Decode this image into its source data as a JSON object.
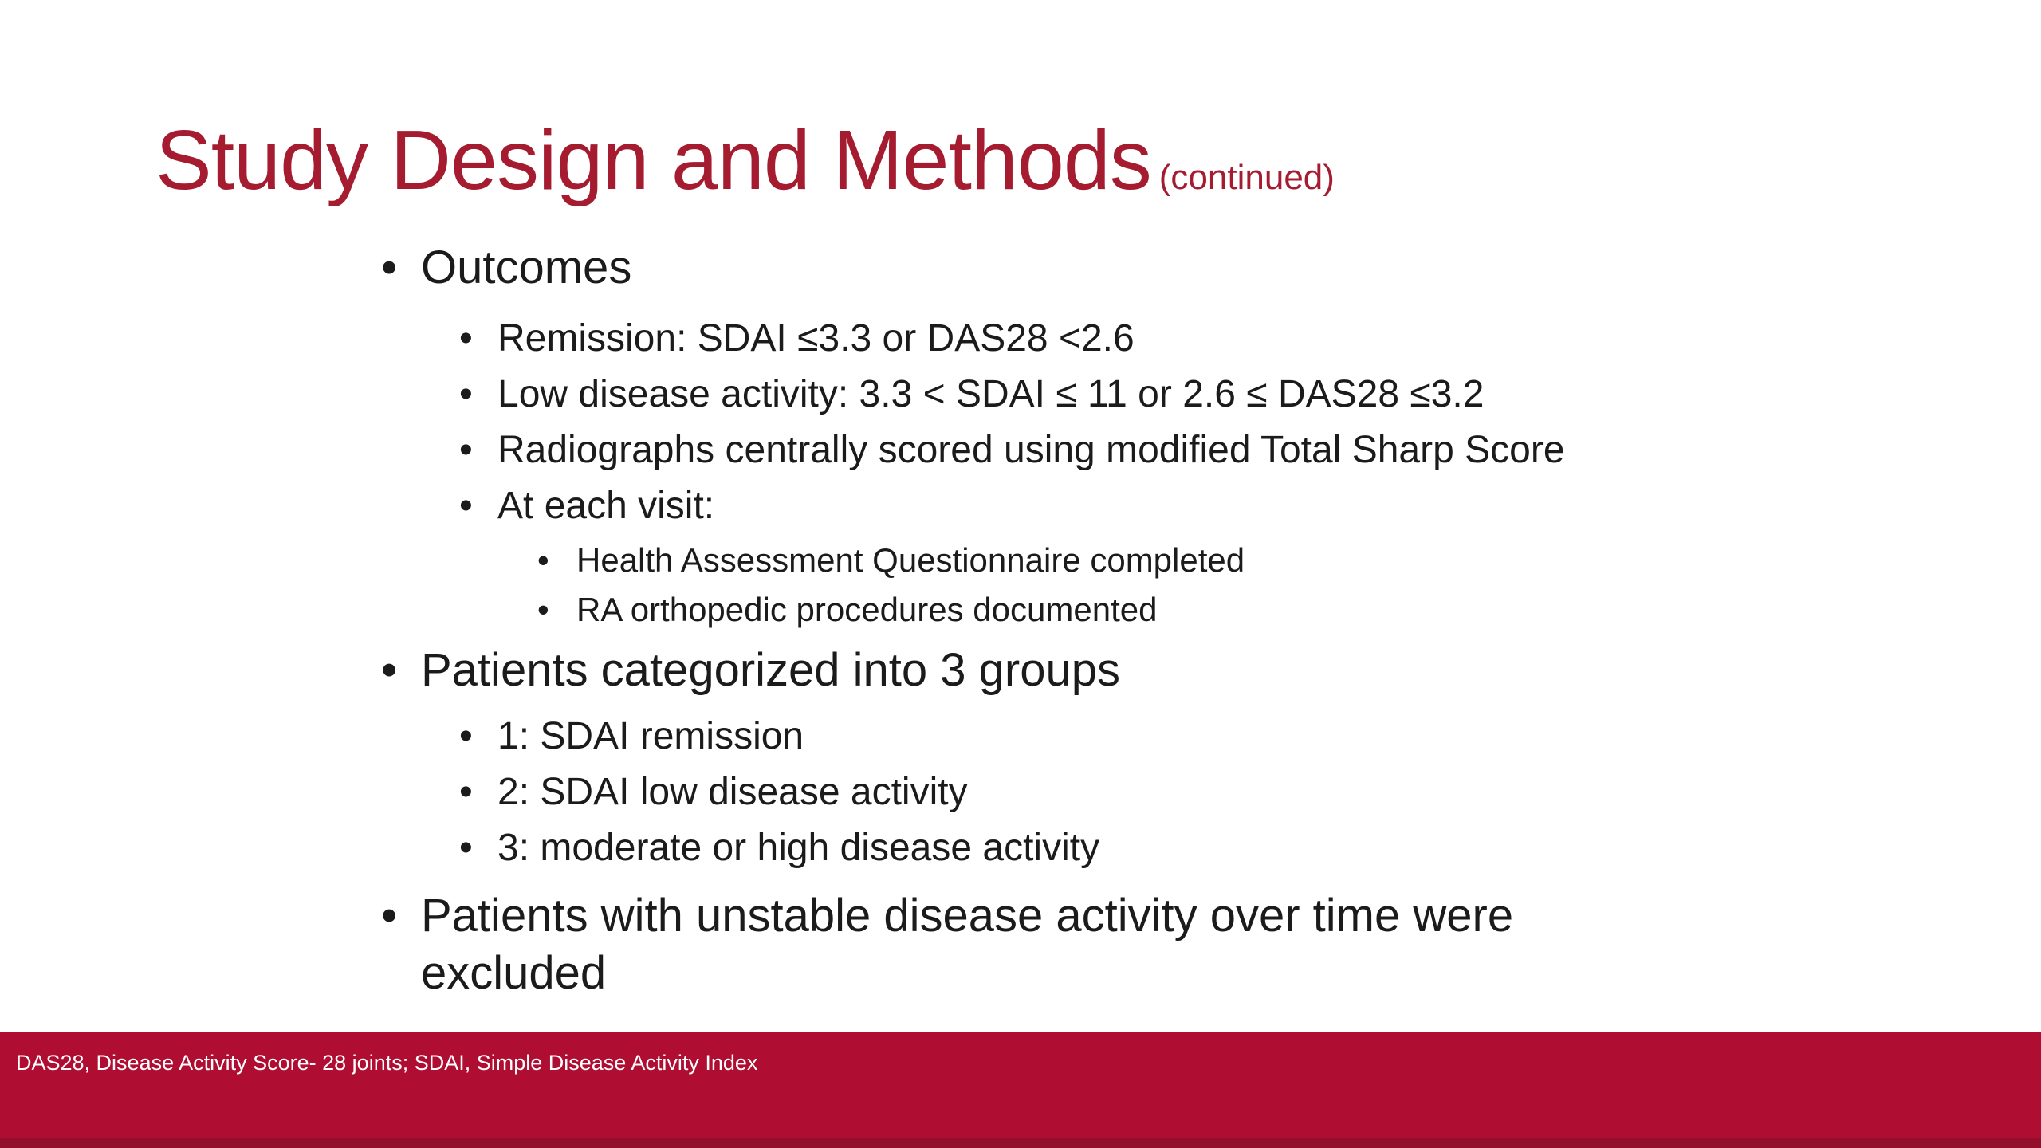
{
  "slide": {
    "title": {
      "text": "Study Design and Methods",
      "suffix": "(continued)"
    },
    "bullet_char": "•",
    "bullets": [
      {
        "level": 1,
        "text": "Outcomes"
      },
      {
        "level": 2,
        "text": "Remission: SDAI ≤3.3 or DAS28 <2.6"
      },
      {
        "level": 2,
        "text": "Low disease activity: 3.3 < SDAI ≤ 11 or 2.6 ≤ DAS28 ≤3.2"
      },
      {
        "level": 2,
        "text": "Radiographs centrally scored using modified Total Sharp Score"
      },
      {
        "level": 2,
        "text": "At each visit:"
      },
      {
        "level": 3,
        "text": "Health Assessment Questionnaire completed"
      },
      {
        "level": 3,
        "text": "RA orthopedic procedures documented"
      },
      {
        "level": 1,
        "text": "Patients categorized into 3 groups"
      },
      {
        "level": 2,
        "text": "1: SDAI remission"
      },
      {
        "level": 2,
        "text": "2: SDAI low disease activity"
      },
      {
        "level": 2,
        "text": "3: moderate or high disease activity"
      },
      {
        "level": 1,
        "text": "Patients with unstable disease activity over time were\nexcluded"
      }
    ],
    "footer": {
      "text": "DAS28, Disease Activity Score- 28 joints; SDAI, Simple Disease Activity Index"
    },
    "colors": {
      "title_red": "#A51C30",
      "footer_red": "#AF0D31",
      "footer_text": "#FFFFFF",
      "body_text": "#1B1B1B",
      "background": "#FFFFFF"
    }
  }
}
